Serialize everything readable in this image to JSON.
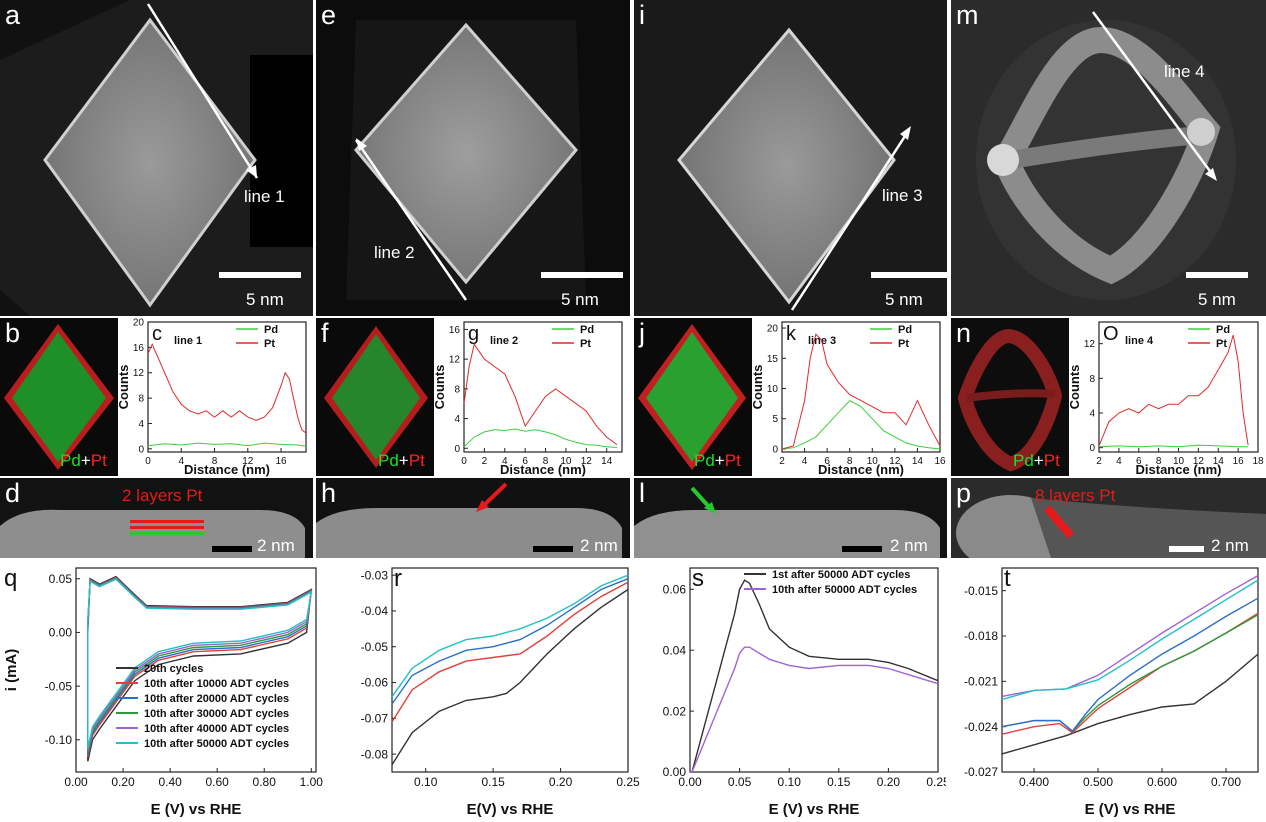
{
  "panels": {
    "a": {
      "letter": "a",
      "line": "line 1",
      "scale": "5 nm"
    },
    "e": {
      "letter": "e",
      "line": "line 2",
      "scale": "5 nm"
    },
    "i": {
      "letter": "i",
      "line": "line 3",
      "scale": "5 nm"
    },
    "m": {
      "letter": "m",
      "line": "line 4",
      "scale": "5 nm"
    },
    "b": {
      "letter": "b",
      "legend_pd": "Pd",
      "legend_plus": "+",
      "legend_pt": "Pt"
    },
    "f": {
      "letter": "f",
      "legend_pd": "Pd",
      "legend_plus": "+",
      "legend_pt": "Pt"
    },
    "j": {
      "letter": "j",
      "legend_pd": "Pd",
      "legend_plus": "+",
      "legend_pt": "Pt"
    },
    "n": {
      "letter": "n",
      "legend_pd": "Pd",
      "legend_plus": "+",
      "legend_pt": "Pt"
    },
    "d": {
      "letter": "d",
      "note": "2 layers Pt",
      "scale": "2 nm"
    },
    "h": {
      "letter": "h",
      "scale": "2 nm"
    },
    "l": {
      "letter": "l",
      "scale": "2 nm"
    },
    "p": {
      "letter": "p",
      "note": "8 layers Pt",
      "scale": "2 nm"
    }
  },
  "chart_data": [
    {
      "id": "c",
      "letter": "c",
      "type": "line",
      "line_label": "line 1",
      "xlabel": "Distance (nm)",
      "ylabel": "Counts",
      "xlim": [
        0,
        19
      ],
      "ylim": [
        -0.5,
        20
      ],
      "xticks": [
        0,
        4,
        8,
        12,
        16
      ],
      "yticks": [
        0,
        4,
        8,
        12,
        16,
        20
      ],
      "legend": [
        "Pd",
        "Pt"
      ],
      "series": [
        {
          "name": "Pd",
          "color": "#3ccf3c",
          "x": [
            0,
            2,
            4,
            6,
            8,
            10,
            12,
            14,
            16,
            18,
            19
          ],
          "y": [
            0.5,
            0.8,
            0.6,
            0.9,
            0.7,
            0.8,
            0.5,
            0.9,
            0.7,
            0.6,
            0.4
          ]
        },
        {
          "name": "Pt",
          "color": "#e02a2a",
          "x": [
            0,
            0.5,
            1,
            2,
            3,
            4,
            5,
            6,
            7,
            8,
            9,
            10,
            11,
            12,
            13,
            14,
            15,
            16,
            16.5,
            17,
            17.5,
            18,
            18.5,
            19
          ],
          "y": [
            15,
            16.5,
            15,
            12,
            9,
            7,
            6,
            5.5,
            6,
            5,
            6,
            5,
            6,
            5,
            4.5,
            5,
            6.5,
            10,
            12,
            11,
            8,
            5,
            3,
            2.5
          ]
        }
      ]
    },
    {
      "id": "g",
      "letter": "g",
      "type": "line",
      "line_label": "line 2",
      "xlabel": "Distance (nm)",
      "ylabel": "Counts",
      "xlim": [
        0,
        15.5
      ],
      "ylim": [
        -0.5,
        17
      ],
      "xticks": [
        0,
        2,
        4,
        6,
        8,
        10,
        12,
        14
      ],
      "yticks": [
        0,
        4,
        8,
        12,
        16
      ],
      "legend": [
        "Pd",
        "Pt"
      ],
      "series": [
        {
          "name": "Pd",
          "color": "#3ccf3c",
          "x": [
            0,
            1,
            2,
            3,
            4,
            5,
            6,
            7,
            8,
            9,
            10,
            11,
            12,
            13,
            14,
            15
          ],
          "y": [
            0.2,
            1.5,
            2.2,
            2.5,
            2.4,
            2.6,
            2.3,
            2.5,
            2.2,
            1.8,
            1.2,
            0.8,
            0.5,
            0.4,
            0.2,
            0.1
          ]
        },
        {
          "name": "Pt",
          "color": "#e02a2a",
          "x": [
            0,
            0.5,
            1,
            1.5,
            2,
            3,
            4,
            5,
            6,
            7,
            8,
            9,
            10,
            11,
            12,
            13,
            14,
            15
          ],
          "y": [
            6,
            11,
            14,
            13,
            12,
            11,
            10,
            7,
            3,
            5,
            7,
            8,
            7,
            6,
            5,
            3,
            1.5,
            0.5
          ]
        }
      ]
    },
    {
      "id": "k",
      "letter": "k",
      "type": "line",
      "line_label": "line 3",
      "xlabel": "Distance (nm)",
      "ylabel": "Counts",
      "xlim": [
        2,
        16
      ],
      "ylim": [
        -0.5,
        21
      ],
      "xticks": [
        2,
        4,
        6,
        8,
        10,
        12,
        14,
        16
      ],
      "yticks": [
        0,
        5,
        10,
        15,
        20
      ],
      "legend": [
        "Pd",
        "Pt"
      ],
      "series": [
        {
          "name": "Pd",
          "color": "#3ccf3c",
          "x": [
            2,
            3,
            4,
            5,
            6,
            7,
            8,
            9,
            10,
            11,
            12,
            13,
            14,
            15,
            16
          ],
          "y": [
            0,
            0.2,
            1,
            2,
            4,
            6,
            8,
            7,
            5,
            3,
            2,
            1,
            0.5,
            0.2,
            0
          ]
        },
        {
          "name": "Pt",
          "color": "#e02a2a",
          "x": [
            2,
            3,
            4,
            4.5,
            5,
            5.5,
            6,
            7,
            8,
            9,
            10,
            11,
            12,
            13,
            14,
            15,
            16
          ],
          "y": [
            0,
            0.5,
            8,
            15,
            19,
            18,
            14,
            11,
            9,
            8,
            7,
            6,
            6,
            4,
            8,
            4,
            0.5
          ]
        }
      ]
    },
    {
      "id": "o",
      "letter": "O",
      "type": "line",
      "line_label": "line 4",
      "xlabel": "Distance (nm)",
      "ylabel": "Counts",
      "xlim": [
        2,
        18
      ],
      "ylim": [
        -0.5,
        14.5
      ],
      "xticks": [
        2,
        4,
        6,
        8,
        10,
        12,
        14,
        16,
        18
      ],
      "yticks": [
        0,
        4,
        8,
        12
      ],
      "legend": [
        "Pd",
        "Pt"
      ],
      "series": [
        {
          "name": "Pd",
          "color": "#3ccf3c",
          "x": [
            2,
            4,
            6,
            8,
            10,
            12,
            14,
            16,
            17
          ],
          "y": [
            0.1,
            0.2,
            0.1,
            0.2,
            0.1,
            0.3,
            0.2,
            0.1,
            0.1
          ]
        },
        {
          "name": "Pt",
          "color": "#e02a2a",
          "x": [
            2,
            3,
            4,
            5,
            6,
            7,
            8,
            9,
            10,
            11,
            12,
            13,
            14,
            15,
            15.5,
            16,
            16.5,
            17
          ],
          "y": [
            0.2,
            3,
            4,
            4.5,
            4,
            5,
            4.5,
            5,
            5,
            6,
            6,
            7,
            9,
            11,
            13,
            10,
            4,
            0.3
          ]
        }
      ]
    },
    {
      "id": "q",
      "letter": "q",
      "type": "line",
      "xlabel": "E (V) vs RHE",
      "ylabel": "i (mA)",
      "xlim": [
        0.0,
        1.02
      ],
      "ylim": [
        -0.13,
        0.06
      ],
      "xticks": [
        0.0,
        0.2,
        0.4,
        0.6,
        0.8,
        1.0
      ],
      "yticks": [
        -0.1,
        -0.05,
        0.0,
        0.05
      ],
      "legend": [
        "20th cycles",
        "10th after 10000 ADT cycles",
        "10th after 20000 ADT cycles",
        "10th after 30000 ADT cycles",
        "10th after 40000 ADT cycles",
        "10th after 50000 ADT cycles"
      ],
      "series": [
        {
          "name": "20th cycles",
          "color": "#333333"
        },
        {
          "name": "10th after 10000 ADT cycles",
          "color": "#e0413a"
        },
        {
          "name": "10th after 20000 ADT cycles",
          "color": "#2a6fc9"
        },
        {
          "name": "10th after 30000 ADT cycles",
          "color": "#2a9a3a"
        },
        {
          "name": "10th after 40000 ADT cycles",
          "color": "#a062d8"
        },
        {
          "name": "10th after 50000 ADT cycles",
          "color": "#22c1c3"
        }
      ]
    },
    {
      "id": "r",
      "letter": "r",
      "type": "line",
      "xlabel": "E(V) vs RHE",
      "ylabel": "",
      "xlim": [
        0.075,
        0.25
      ],
      "ylim": [
        -0.085,
        -0.028
      ],
      "xticks": [
        0.1,
        0.15,
        0.2,
        0.25
      ],
      "yticks": [
        -0.08,
        -0.07,
        -0.06,
        -0.05,
        -0.04,
        -0.03
      ],
      "series": [
        {
          "color": "#333333",
          "x": [
            0.075,
            0.09,
            0.11,
            0.13,
            0.15,
            0.16,
            0.17,
            0.19,
            0.21,
            0.23,
            0.25
          ],
          "y": [
            -0.083,
            -0.074,
            -0.068,
            -0.065,
            -0.064,
            -0.063,
            -0.06,
            -0.052,
            -0.045,
            -0.039,
            -0.034
          ]
        },
        {
          "color": "#e0413a",
          "x": [
            0.075,
            0.09,
            0.11,
            0.13,
            0.15,
            0.17,
            0.19,
            0.21,
            0.23,
            0.25
          ],
          "y": [
            -0.071,
            -0.062,
            -0.057,
            -0.054,
            -0.053,
            -0.052,
            -0.047,
            -0.041,
            -0.036,
            -0.032
          ]
        },
        {
          "color": "#2a6fc9",
          "x": [
            0.075,
            0.09,
            0.11,
            0.13,
            0.15,
            0.17,
            0.19,
            0.21,
            0.23,
            0.25
          ],
          "y": [
            -0.066,
            -0.058,
            -0.054,
            -0.051,
            -0.05,
            -0.048,
            -0.044,
            -0.039,
            -0.034,
            -0.031
          ]
        },
        {
          "color": "#22c1c3",
          "x": [
            0.075,
            0.09,
            0.11,
            0.13,
            0.15,
            0.17,
            0.19,
            0.21,
            0.23,
            0.25
          ],
          "y": [
            -0.064,
            -0.056,
            -0.051,
            -0.048,
            -0.047,
            -0.045,
            -0.042,
            -0.038,
            -0.033,
            -0.03
          ]
        }
      ]
    },
    {
      "id": "s",
      "letter": "s",
      "type": "line",
      "xlabel": "E (V) vs RHE",
      "ylabel": "",
      "xlim": [
        0.0,
        0.25
      ],
      "ylim": [
        0.0,
        0.067
      ],
      "xticks": [
        0.0,
        0.05,
        0.1,
        0.15,
        0.2,
        0.25
      ],
      "yticks": [
        0.0,
        0.02,
        0.04,
        0.06
      ],
      "legend": [
        "1st after 50000 ADT cycles",
        "10th after 50000 ADT cycles"
      ],
      "series": [
        {
          "name": "1st after 50000 ADT cycles",
          "color": "#333333",
          "x": [
            0.0,
            0.002,
            0.045,
            0.05,
            0.055,
            0.06,
            0.07,
            0.08,
            0.1,
            0.12,
            0.15,
            0.18,
            0.2,
            0.22,
            0.25
          ],
          "y": [
            0.0,
            0.0,
            0.052,
            0.06,
            0.063,
            0.062,
            0.055,
            0.047,
            0.041,
            0.038,
            0.037,
            0.037,
            0.036,
            0.034,
            0.03
          ]
        },
        {
          "name": "10th after 50000 ADT cycles",
          "color": "#a062d8",
          "x": [
            0.0,
            0.002,
            0.045,
            0.05,
            0.055,
            0.06,
            0.07,
            0.08,
            0.1,
            0.12,
            0.15,
            0.18,
            0.2,
            0.22,
            0.25
          ],
          "y": [
            0.0,
            0.0,
            0.034,
            0.039,
            0.041,
            0.041,
            0.039,
            0.037,
            0.035,
            0.034,
            0.035,
            0.035,
            0.034,
            0.032,
            0.029
          ]
        }
      ]
    },
    {
      "id": "t",
      "letter": "t",
      "type": "line",
      "xlabel": "E (V) vs RHE",
      "ylabel": "",
      "xlim": [
        0.35,
        0.75
      ],
      "ylim": [
        -0.027,
        -0.0135
      ],
      "xticks": [
        0.4,
        0.5,
        0.6,
        0.7
      ],
      "yticks": [
        -0.027,
        -0.024,
        -0.021,
        -0.018,
        -0.015
      ],
      "series": [
        {
          "color": "#333333",
          "x": [
            0.35,
            0.4,
            0.45,
            0.5,
            0.55,
            0.6,
            0.65,
            0.7,
            0.75
          ],
          "y": [
            -0.0258,
            -0.0252,
            -0.0246,
            -0.0238,
            -0.0232,
            -0.0227,
            -0.0225,
            -0.021,
            -0.0192
          ]
        },
        {
          "color": "#e0413a",
          "x": [
            0.35,
            0.4,
            0.44,
            0.46,
            0.48,
            0.5,
            0.55,
            0.6,
            0.65,
            0.7,
            0.75
          ],
          "y": [
            -0.0245,
            -0.024,
            -0.0238,
            -0.0244,
            -0.0236,
            -0.0228,
            -0.0214,
            -0.02,
            -0.019,
            -0.0178,
            -0.0165
          ]
        },
        {
          "color": "#2a9a3a",
          "x": [
            0.35,
            0.4,
            0.44,
            0.46,
            0.48,
            0.5,
            0.55,
            0.6,
            0.65,
            0.7,
            0.75
          ],
          "y": [
            -0.024,
            -0.0236,
            -0.0236,
            -0.0243,
            -0.0234,
            -0.0226,
            -0.0212,
            -0.02,
            -0.019,
            -0.0178,
            -0.0166
          ]
        },
        {
          "color": "#2a6fc9",
          "x": [
            0.35,
            0.4,
            0.44,
            0.46,
            0.48,
            0.5,
            0.55,
            0.6,
            0.65,
            0.7,
            0.75
          ],
          "y": [
            -0.024,
            -0.0236,
            -0.0236,
            -0.0243,
            -0.0232,
            -0.0222,
            -0.0206,
            -0.0192,
            -0.018,
            -0.0167,
            -0.0155
          ]
        },
        {
          "color": "#a062d8",
          "x": [
            0.35,
            0.4,
            0.45,
            0.5,
            0.55,
            0.6,
            0.65,
            0.7,
            0.75
          ],
          "y": [
            -0.022,
            -0.0216,
            -0.0215,
            -0.0206,
            -0.0192,
            -0.0178,
            -0.0165,
            -0.0152,
            -0.014
          ]
        },
        {
          "color": "#22c1c3",
          "x": [
            0.35,
            0.4,
            0.45,
            0.5,
            0.55,
            0.6,
            0.65,
            0.7,
            0.75
          ],
          "y": [
            -0.0222,
            -0.0216,
            -0.0215,
            -0.0209,
            -0.0196,
            -0.0182,
            -0.0169,
            -0.0156,
            -0.0143
          ]
        }
      ]
    }
  ]
}
